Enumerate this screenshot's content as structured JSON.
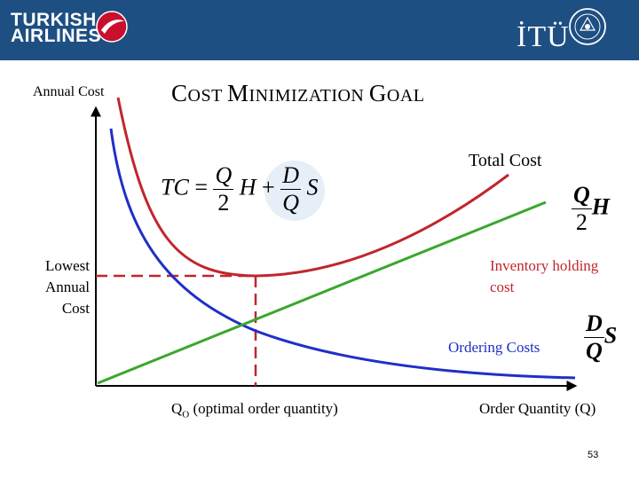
{
  "header": {
    "airline_logo_text": [
      "TURKISH",
      "AIRLINES"
    ],
    "university_logo_text": "İTÜ",
    "colors": {
      "band": "#1e4f82",
      "logo_red": "#c8102e"
    }
  },
  "slide": {
    "title_parts": [
      "C",
      "OST ",
      "M",
      "INIMIZATION ",
      "G",
      "OAL"
    ],
    "y_axis_label": "Annual Cost",
    "x_axis_label": "Order Quantity (Q)",
    "total_cost_label": "Total Cost",
    "lowest_cost_label": [
      "Lowest",
      "Annual",
      "Cost"
    ],
    "holding_label": [
      "Inventory holding",
      "cost"
    ],
    "ordering_label": "Ordering Costs",
    "q_optimal_label": {
      "main": "Q",
      "sub": "O",
      "rest": " (optimal order quantity)"
    },
    "page_number": "53"
  },
  "formulas": {
    "total": {
      "lhs": "TC",
      "eq": "=",
      "t1_num": "Q",
      "t1_den": "2",
      "t1_var": "H",
      "plus": "+",
      "t2_num": "D",
      "t2_den": "Q",
      "t2_var": "S"
    },
    "holding": {
      "num": "Q",
      "den": "2",
      "var": "H"
    },
    "ordering": {
      "num": "D",
      "den": "Q",
      "var": "S"
    }
  },
  "curves": {
    "total_cost": {
      "name": "Total Cost",
      "color": "#c0262d"
    },
    "holding_cost": {
      "name": "Inventory holding cost",
      "color": "#3aa72f"
    },
    "ordering_cost": {
      "name": "Ordering Costs",
      "color": "#1f2fc6"
    },
    "guides_color": "#c0262d"
  }
}
